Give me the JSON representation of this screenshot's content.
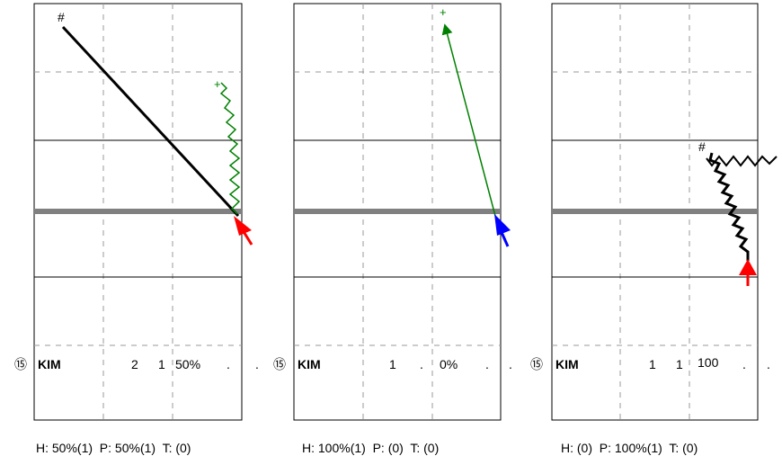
{
  "panels": [
    {
      "number_badge": "⑮",
      "player": "KIM",
      "col1": "2",
      "col2": "1",
      "col3": "50%",
      "col4": ".",
      "col5": ".",
      "footer": "H: 50%(1)  P: 50%(1)  T: (0)",
      "arrow_color": "#ff0000",
      "symbols": [
        "#",
        "+"
      ]
    },
    {
      "number_badge": "⑮",
      "player": "KIM",
      "col1": "1",
      "col2": ".",
      "col3": "0%",
      "col4": ".",
      "col5": ".",
      "footer": "H: 100%(1)  P: (0)  T: (0)",
      "arrow_color": "#0000ff",
      "symbols": [
        "+"
      ]
    },
    {
      "number_badge": "⑮",
      "player": "KIM",
      "col1": "1",
      "col2": "1",
      "col3": "100",
      "col4": ".",
      "col5": ".",
      "footer": "H: (0)  P: 100%(1)  T: (0)",
      "arrow_color": "#ff0000",
      "symbols": [
        "#"
      ]
    }
  ],
  "colors": {
    "shot_line": "#000000",
    "pass_line": "#008000",
    "crease_line": "#808080",
    "grid_dash": "#999999"
  }
}
